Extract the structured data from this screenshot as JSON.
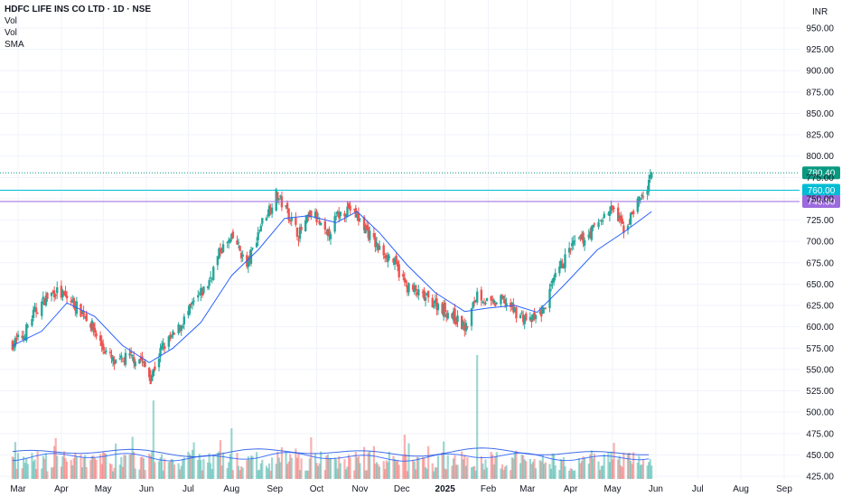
{
  "header": {
    "title": "HDFC LIFE INS CO LTD · 1D · NSE",
    "indicators": [
      "Vol",
      "Vol",
      "SMA"
    ],
    "currency": "INR"
  },
  "colors": {
    "up": "#26a69a",
    "down": "#ef5350",
    "sma": "#2962ff",
    "last_price": "#089981",
    "line_760": "#00bcd4",
    "line_746": "#9c6ade",
    "grid": "#f0f3fa"
  },
  "chart_data": {
    "type": "candlestick",
    "title": "HDFC LIFE INS CO LTD · 1D · NSE",
    "ylabel": "INR",
    "ylim": [
      425,
      960
    ],
    "y_ticks": [
      "950.00",
      "925.00",
      "900.00",
      "875.00",
      "850.00",
      "825.00",
      "800.00",
      "775.00",
      "750.00",
      "725.00",
      "700.00",
      "675.00",
      "650.00",
      "625.00",
      "600.00",
      "575.00",
      "550.00",
      "525.00",
      "500.00",
      "475.00",
      "450.00",
      "425.00"
    ],
    "x_ticks": [
      "Mar",
      "Apr",
      "May",
      "Jun",
      "Jul",
      "Aug",
      "Sep",
      "Oct",
      "Nov",
      "Dec",
      "2025",
      "Feb",
      "Mar",
      "Apr",
      "May",
      "Jun",
      "Jul",
      "Aug",
      "Sep"
    ],
    "horizontal_lines": [
      {
        "price": 780.4,
        "label": "780.40",
        "style": "dotted",
        "color": "#089981"
      },
      {
        "price": 760.0,
        "label": "760.00",
        "style": "solid",
        "color": "#00bcd4"
      },
      {
        "price": 746.8,
        "label": "746.80",
        "style": "solid",
        "color": "#9c6ade"
      }
    ],
    "close_path": [
      [
        "2024-02-26",
        580
      ],
      [
        "2024-03-05",
        590
      ],
      [
        "2024-03-12",
        615
      ],
      [
        "2024-03-20",
        632
      ],
      [
        "2024-03-28",
        642
      ],
      [
        "2024-04-08",
        630
      ],
      [
        "2024-04-20",
        610
      ],
      [
        "2024-05-01",
        575
      ],
      [
        "2024-05-10",
        555
      ],
      [
        "2024-05-18",
        565
      ],
      [
        "2024-05-28",
        562
      ],
      [
        "2024-06-04",
        540
      ],
      [
        "2024-06-12",
        575
      ],
      [
        "2024-06-22",
        592
      ],
      [
        "2024-07-04",
        625
      ],
      [
        "2024-07-15",
        650
      ],
      [
        "2024-07-24",
        690
      ],
      [
        "2024-08-03",
        705
      ],
      [
        "2024-08-12",
        670
      ],
      [
        "2024-08-22",
        720
      ],
      [
        "2024-09-02",
        755
      ],
      [
        "2024-09-10",
        735
      ],
      [
        "2024-09-18",
        708
      ],
      [
        "2024-09-28",
        735
      ],
      [
        "2024-10-08",
        705
      ],
      [
        "2024-10-16",
        730
      ],
      [
        "2024-10-24",
        740
      ],
      [
        "2024-11-04",
        718
      ],
      [
        "2024-11-14",
        692
      ],
      [
        "2024-11-24",
        680
      ],
      [
        "2024-12-04",
        648
      ],
      [
        "2024-12-16",
        635
      ],
      [
        "2024-12-28",
        625
      ],
      [
        "2025-01-08",
        610
      ],
      [
        "2025-01-16",
        598
      ],
      [
        "2025-01-24",
        640
      ],
      [
        "2025-02-03",
        625
      ],
      [
        "2025-02-12",
        632
      ],
      [
        "2025-02-20",
        618
      ],
      [
        "2025-03-03",
        606
      ],
      [
        "2025-03-12",
        618
      ],
      [
        "2025-03-22",
        662
      ],
      [
        "2025-04-02",
        695
      ],
      [
        "2025-04-12",
        705
      ],
      [
        "2025-04-22",
        725
      ],
      [
        "2025-05-01",
        738
      ],
      [
        "2025-05-10",
        712
      ],
      [
        "2025-05-18",
        745
      ],
      [
        "2025-05-26",
        760
      ],
      [
        "2025-05-29",
        780.4
      ]
    ],
    "sma_path": [
      [
        "2024-02-26",
        578
      ],
      [
        "2024-03-18",
        595
      ],
      [
        "2024-04-05",
        628
      ],
      [
        "2024-04-25",
        612
      ],
      [
        "2024-05-15",
        578
      ],
      [
        "2024-06-03",
        558
      ],
      [
        "2024-06-20",
        575
      ],
      [
        "2024-07-10",
        605
      ],
      [
        "2024-08-01",
        660
      ],
      [
        "2024-08-20",
        690
      ],
      [
        "2024-09-08",
        727
      ],
      [
        "2024-09-25",
        730
      ],
      [
        "2024-10-15",
        722
      ],
      [
        "2024-10-30",
        735
      ],
      [
        "2024-11-15",
        710
      ],
      [
        "2024-12-05",
        672
      ],
      [
        "2024-12-25",
        640
      ],
      [
        "2025-01-15",
        618
      ],
      [
        "2025-02-01",
        622
      ],
      [
        "2025-02-20",
        625
      ],
      [
        "2025-03-08",
        617
      ],
      [
        "2025-03-28",
        650
      ],
      [
        "2025-04-20",
        690
      ],
      [
        "2025-05-10",
        712
      ],
      [
        "2025-05-29",
        735
      ]
    ],
    "volume_spikes": [
      [
        "2024-06-06",
        0.62
      ],
      [
        "2025-01-24",
        0.98
      ],
      [
        "2024-12-03",
        0.35
      ],
      [
        "2024-08-01",
        0.28
      ],
      [
        "2024-09-06",
        0.25
      ],
      [
        "2025-05-12",
        0.2
      ]
    ],
    "volume_ma_levels": [
      0.25,
      0.3
    ]
  }
}
